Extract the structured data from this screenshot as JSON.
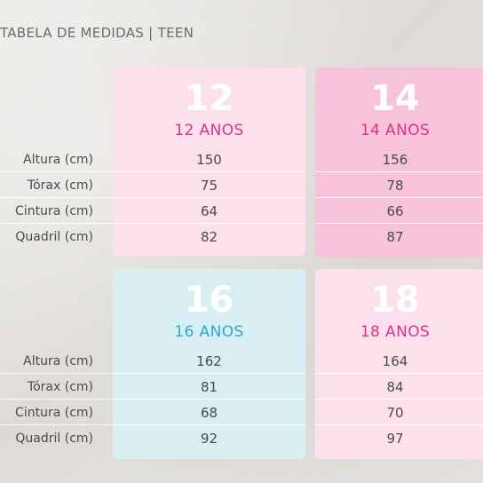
{
  "title": "TABELA DE MEDIDAS | TEEN",
  "row_labels": [
    "Altura (cm)",
    "Tórax (cm)",
    "Cintura (cm)",
    "Quadril (cm)"
  ],
  "sizes": [
    {
      "number": "12",
      "label": "12 ANOS",
      "values": [
        "150",
        "75",
        "64",
        "82"
      ],
      "bg": "#fce1ed",
      "accent": "#d8338a"
    },
    {
      "number": "14",
      "label": "14 ANOS",
      "values": [
        "156",
        "78",
        "66",
        "87"
      ],
      "bg": "#f6c3da",
      "accent": "#d8338a"
    },
    {
      "number": "16",
      "label": "16 ANOS",
      "values": [
        "162",
        "81",
        "68",
        "92"
      ],
      "bg": "#d9eef3",
      "accent": "#2aa9cf"
    },
    {
      "number": "18",
      "label": "18 ANOS",
      "values": [
        "164",
        "84",
        "70",
        "97"
      ],
      "bg": "#fce1ed",
      "accent": "#d8338a"
    }
  ]
}
